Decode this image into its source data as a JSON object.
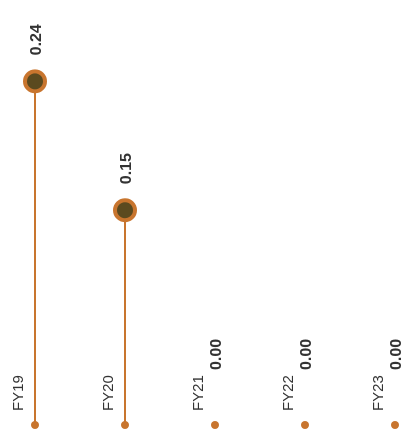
{
  "chart_data": {
    "type": "lollipop",
    "categories": [
      "FY19",
      "FY20",
      "FY21",
      "FY22",
      "FY23"
    ],
    "values": [
      0.24,
      0.15,
      0,
      0,
      0
    ],
    "value_labels": [
      "0.24",
      "0.15",
      "0.00",
      "0.00",
      "0.00"
    ],
    "color": "#c8752e",
    "marker_fill": "#5b4a1f",
    "ylim": [
      0,
      0.25
    ]
  }
}
